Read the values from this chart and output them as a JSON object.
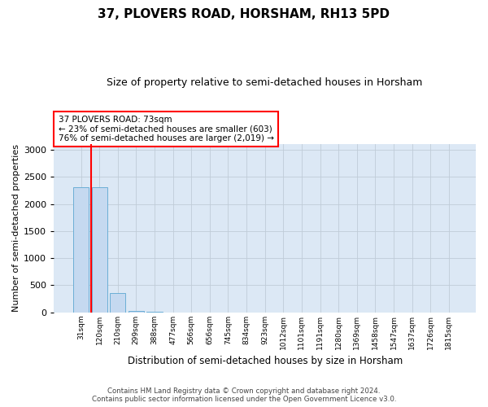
{
  "title": "37, PLOVERS ROAD, HORSHAM, RH13 5PD",
  "subtitle": "Size of property relative to semi-detached houses in Horsham",
  "xlabel": "Distribution of semi-detached houses by size in Horsham",
  "ylabel": "Number of semi-detached properties",
  "bar_labels": [
    "31sqm",
    "120sqm",
    "210sqm",
    "299sqm",
    "388sqm",
    "477sqm",
    "566sqm",
    "656sqm",
    "745sqm",
    "834sqm",
    "923sqm",
    "1012sqm",
    "1101sqm",
    "1191sqm",
    "1280sqm",
    "1369sqm",
    "1458sqm",
    "1547sqm",
    "1637sqm",
    "1726sqm",
    "1815sqm"
  ],
  "bar_values": [
    2310,
    2310,
    350,
    30,
    8,
    3,
    1,
    1,
    0,
    0,
    0,
    0,
    0,
    0,
    0,
    0,
    0,
    0,
    0,
    0,
    0
  ],
  "bar_color": "#c5d9f0",
  "bar_edge_color": "#6baed6",
  "annotation_text": "37 PLOVERS ROAD: 73sqm\n← 23% of semi-detached houses are smaller (603)\n76% of semi-detached houses are larger (2,019) →",
  "red_line_x": 0.57,
  "footnote1": "Contains HM Land Registry data © Crown copyright and database right 2024.",
  "footnote2": "Contains public sector information licensed under the Open Government Licence v3.0.",
  "ylim": [
    0,
    3100
  ],
  "yticks": [
    0,
    500,
    1000,
    1500,
    2000,
    2500,
    3000
  ],
  "background_color": "#ffffff",
  "axes_bg_color": "#dce8f5",
  "grid_color": "#c0ccd8"
}
